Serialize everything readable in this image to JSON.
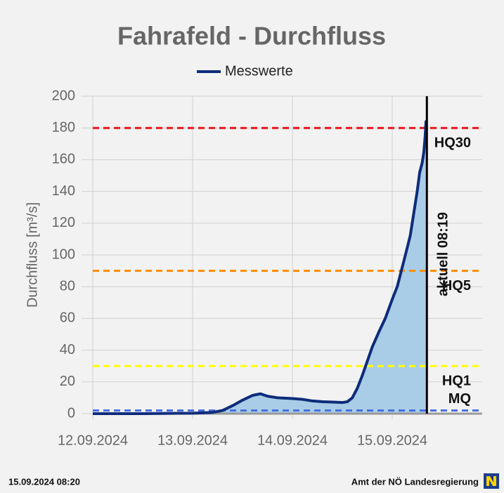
{
  "chart_data": {
    "type": "line",
    "title": "Fahrafeld - Durchfluss",
    "y_label": "Durchfluss [m³/s]",
    "x": [
      0,
      0.5,
      1.0,
      1.2,
      1.3,
      1.4,
      1.5,
      1.6,
      1.68,
      1.75,
      1.85,
      2.0,
      2.1,
      2.2,
      2.3,
      2.4,
      2.5,
      2.55,
      2.6,
      2.65,
      2.7,
      2.75,
      2.8,
      2.87,
      2.93,
      3.0,
      3.05,
      3.12,
      3.18,
      3.225,
      3.25,
      3.275,
      3.3,
      3.317,
      3.33,
      3.338,
      3.347
    ],
    "series": [
      {
        "name": "Messwerte",
        "color": "#0d2c7a",
        "values": [
          0,
          0,
          0.3,
          0.8,
          2,
          5,
          8.5,
          11.5,
          12.5,
          11,
          10,
          9.5,
          9,
          8,
          7.5,
          7.3,
          7,
          7.5,
          10,
          16,
          24,
          33,
          42,
          52,
          60,
          72,
          80,
          97,
          112,
          130,
          140,
          152,
          158,
          165,
          175,
          184,
          184
        ]
      }
    ],
    "thresholds": [
      {
        "label": "HQ30",
        "value": 180,
        "color": "#e8151b"
      },
      {
        "label": "HQ5",
        "value": 90,
        "color": "#ff8c00"
      },
      {
        "label": "HQ1",
        "value": 30,
        "color": "#ffff00"
      },
      {
        "label": "MQ",
        "value": 2,
        "color": "#4a6fe0"
      }
    ],
    "current": {
      "x": 3.347,
      "label": "aktuell 08:19"
    },
    "xlim": [
      0,
      3.9
    ],
    "ylim": [
      0,
      200
    ],
    "xticks": [
      {
        "value": 0,
        "label": "12.09.2024"
      },
      {
        "value": 1,
        "label": "13.09.2024"
      },
      {
        "value": 2,
        "label": "14.09.2024"
      },
      {
        "value": 3,
        "label": "15.09.2024"
      }
    ],
    "yticks": [
      0,
      20,
      40,
      60,
      80,
      100,
      120,
      140,
      160,
      180,
      200
    ],
    "grid": true
  },
  "footer": {
    "timestamp": "15.09.2024 08:20",
    "source": "Amt der NÖ Landesregierung"
  }
}
